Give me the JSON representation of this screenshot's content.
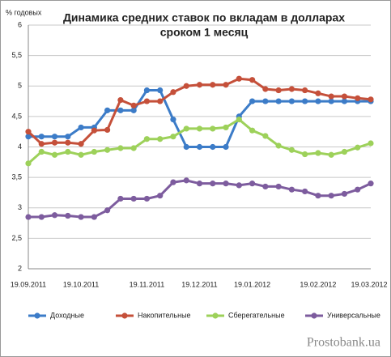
{
  "chart_data": {
    "type": "line",
    "title": [
      "Динамика средних ставок по вкладам в долларах",
      "сроком 1 месяц"
    ],
    "ylabel": "% годовых",
    "watermark": "Prostobank.ua",
    "categories": [
      "19.09.2011",
      null,
      null,
      null,
      "19.10.2011",
      null,
      null,
      null,
      null,
      "19.11.2011",
      null,
      null,
      null,
      "19.12.2011",
      null,
      null,
      null,
      "19.01.2012",
      null,
      null,
      null,
      null,
      "19.02.2012",
      null,
      null,
      null,
      "19.03.2012"
    ],
    "ylim": [
      2,
      6
    ],
    "yticks": [
      2,
      {
        "value": 2.5,
        "label": "2,5"
      },
      3,
      {
        "value": 3.5,
        "label": "3,5"
      },
      4,
      {
        "value": 4.5,
        "label": "4,5"
      },
      5,
      {
        "value": 5.5,
        "label": "5,5"
      },
      6
    ],
    "grid": true,
    "legend": "bottom",
    "series": [
      {
        "name": "Доходные",
        "color": "#3c7cc8",
        "values": [
          4.17,
          4.17,
          4.17,
          4.17,
          4.32,
          4.32,
          4.6,
          4.6,
          4.6,
          4.93,
          4.93,
          4.45,
          4.0,
          4.0,
          4.0,
          4.0,
          4.5,
          4.75,
          4.75,
          4.75,
          4.75,
          4.75,
          4.75,
          4.75,
          4.75,
          4.75,
          4.75
        ]
      },
      {
        "name": "Накопительные",
        "color": "#c5503a",
        "values": [
          4.25,
          4.05,
          4.07,
          4.07,
          4.05,
          4.27,
          4.28,
          4.77,
          4.68,
          4.75,
          4.75,
          4.9,
          5.0,
          5.02,
          5.02,
          5.02,
          5.12,
          5.1,
          4.95,
          4.93,
          4.95,
          4.93,
          4.88,
          4.83,
          4.83,
          4.8,
          4.78
        ]
      },
      {
        "name": "Сберегательные",
        "color": "#9dd15a",
        "values": [
          3.73,
          3.92,
          3.87,
          3.92,
          3.87,
          3.92,
          3.95,
          3.98,
          3.98,
          4.13,
          4.13,
          4.17,
          4.3,
          4.3,
          4.3,
          4.32,
          4.45,
          4.27,
          4.18,
          4.02,
          3.95,
          3.88,
          3.9,
          3.87,
          3.92,
          3.99,
          4.06
        ]
      },
      {
        "name": "Универсальные",
        "color": "#7d5c9e",
        "values": [
          2.85,
          2.85,
          2.88,
          2.87,
          2.85,
          2.85,
          2.96,
          3.15,
          3.15,
          3.15,
          3.2,
          3.42,
          3.45,
          3.4,
          3.4,
          3.4,
          3.37,
          3.4,
          3.35,
          3.35,
          3.3,
          3.27,
          3.2,
          3.2,
          3.23,
          3.3,
          3.4
        ]
      }
    ]
  }
}
